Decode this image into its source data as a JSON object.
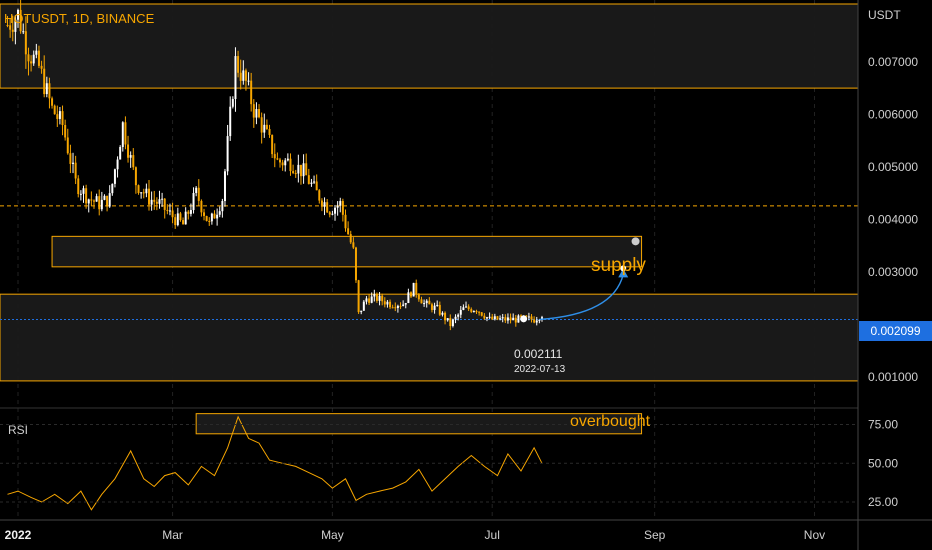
{
  "header": {
    "symbol": "HOTUSDT, 1D, BINANCE",
    "currency": "USDT"
  },
  "annotations": {
    "supply": "supply",
    "overbought": "overbought",
    "point_value": "0.002111",
    "point_date": "2022-07-13"
  },
  "rsi": {
    "label": "RSI",
    "ticks": [
      "75.00",
      "50.00",
      "25.00"
    ]
  },
  "last_price": "0.002099",
  "colors": {
    "accent": "#f7a600",
    "zone_fill": "#1a1a1a",
    "last_price": "#1e6fe0",
    "arrow": "#2f8fe8",
    "bull_candle": "#ffffff",
    "bear_candle": "#f7a600"
  },
  "chart_data": [
    {
      "type": "candlestick",
      "symbol": "HOTUSDT",
      "interval": "1D",
      "exchange": "BINANCE",
      "y_axis": {
        "unit": "USDT",
        "ticks": [
          "0.007000",
          "0.006000",
          "0.005000",
          "0.004000",
          "0.003000",
          "0.001000"
        ],
        "range": [
          0.0007,
          0.0081
        ]
      },
      "x_axis": {
        "ticks": [
          "2022",
          "Mar",
          "May",
          "Jul",
          "Sep",
          "Nov"
        ],
        "tick_dates": [
          "2022-01-01",
          "2022-03-01",
          "2022-05-01",
          "2022-07-01",
          "2022-09-01",
          "2022-11-01"
        ]
      },
      "close_series": {
        "dates": [
          "2021-12-28",
          "2022-01-01",
          "2022-01-05",
          "2022-01-09",
          "2022-01-14",
          "2022-01-18",
          "2022-01-23",
          "2022-01-28",
          "2022-02-01",
          "2022-02-05",
          "2022-02-10",
          "2022-02-15",
          "2022-02-20",
          "2022-02-24",
          "2022-02-28",
          "2022-03-05",
          "2022-03-10",
          "2022-03-15",
          "2022-03-20",
          "2022-03-25",
          "2022-03-29",
          "2022-04-01",
          "2022-04-05",
          "2022-04-10",
          "2022-04-15",
          "2022-04-20",
          "2022-04-25",
          "2022-04-30",
          "2022-05-04",
          "2022-05-06",
          "2022-05-09",
          "2022-05-11",
          "2022-05-14",
          "2022-05-18",
          "2022-05-23",
          "2022-05-28",
          "2022-06-01",
          "2022-06-05",
          "2022-06-10",
          "2022-06-15",
          "2022-06-20",
          "2022-06-25",
          "2022-06-30",
          "2022-07-05",
          "2022-07-10",
          "2022-07-13",
          "2022-07-17",
          "2022-07-20"
        ],
        "close": [
          0.0077,
          0.0079,
          0.0072,
          0.0069,
          0.0061,
          0.0058,
          0.0047,
          0.0044,
          0.0043,
          0.0044,
          0.0058,
          0.0047,
          0.0044,
          0.0043,
          0.0041,
          0.0039,
          0.0045,
          0.0039,
          0.0044,
          0.007,
          0.0066,
          0.0061,
          0.0057,
          0.0051,
          0.0051,
          0.0049,
          0.0045,
          0.0042,
          0.0043,
          0.0039,
          0.0034,
          0.0022,
          0.0025,
          0.0025,
          0.0024,
          0.0024,
          0.0027,
          0.0024,
          0.0023,
          0.002,
          0.0023,
          0.0023,
          0.0021,
          0.0021,
          0.0021,
          0.00211,
          0.0021,
          0.0022
        ]
      },
      "marked_point": {
        "date": "2022-07-13",
        "value": 0.002111
      },
      "horizontal_line": 0.00426,
      "last_price_line": 0.002099,
      "zones": [
        {
          "from": 0.0065,
          "to": 0.0081
        },
        {
          "label": "supply",
          "from": 0.0031,
          "to": 0.00368,
          "start": "2022-01-14",
          "end": "2022-08-27"
        },
        {
          "from": 0.00093,
          "to": 0.00258
        }
      ],
      "projection_arrow": {
        "from_date": "2022-07-19",
        "from_value": 0.0021,
        "to_date": "2022-08-20",
        "to_value": 0.00307
      }
    },
    {
      "type": "line",
      "title": "RSI",
      "y_ticks": [
        75,
        50,
        25
      ],
      "zone": {
        "label": "overbought",
        "from": 69,
        "to": 82,
        "start": "2022-03-10",
        "end": "2022-08-27"
      },
      "x": [
        "2021-12-28",
        "2022-01-01",
        "2022-01-06",
        "2022-01-10",
        "2022-01-15",
        "2022-01-20",
        "2022-01-25",
        "2022-01-29",
        "2022-02-02",
        "2022-02-07",
        "2022-02-13",
        "2022-02-18",
        "2022-02-22",
        "2022-02-26",
        "2022-03-02",
        "2022-03-07",
        "2022-03-12",
        "2022-03-17",
        "2022-03-22",
        "2022-03-26",
        "2022-03-30",
        "2022-04-03",
        "2022-04-07",
        "2022-04-12",
        "2022-04-17",
        "2022-04-22",
        "2022-04-27",
        "2022-05-01",
        "2022-05-06",
        "2022-05-10",
        "2022-05-14",
        "2022-05-19",
        "2022-05-24",
        "2022-05-29",
        "2022-06-03",
        "2022-06-08",
        "2022-06-13",
        "2022-06-18",
        "2022-06-23",
        "2022-06-28",
        "2022-07-03",
        "2022-07-07",
        "2022-07-12",
        "2022-07-17",
        "2022-07-20"
      ],
      "values": [
        30,
        32,
        28,
        25,
        30,
        24,
        32,
        20,
        30,
        40,
        58,
        40,
        35,
        42,
        44,
        36,
        48,
        42,
        60,
        80,
        66,
        63,
        52,
        50,
        48,
        44,
        40,
        34,
        40,
        26,
        30,
        32,
        34,
        38,
        46,
        32,
        40,
        48,
        55,
        48,
        42,
        56,
        45,
        60,
        50
      ]
    }
  ]
}
